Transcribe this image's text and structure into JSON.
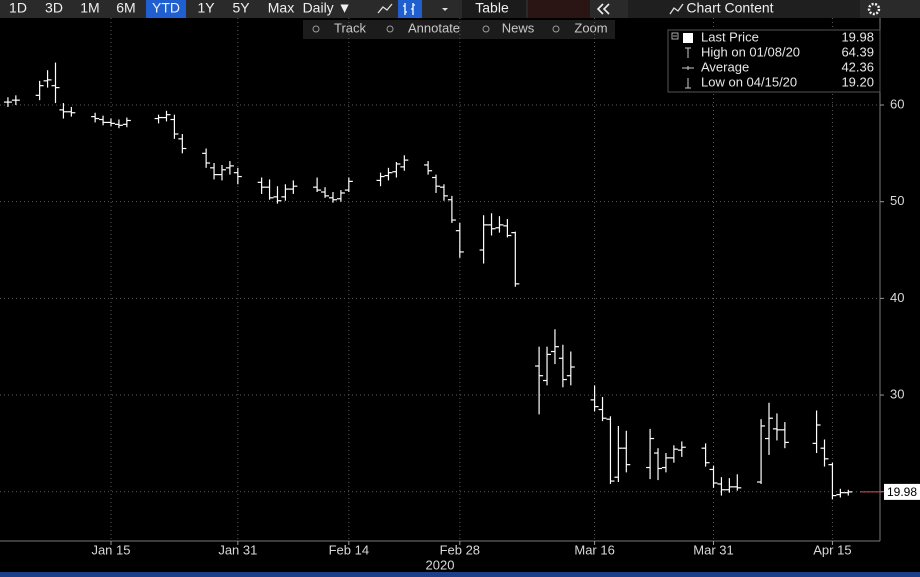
{
  "toolbar": {
    "periods": [
      "1D",
      "3D",
      "1M",
      "6M",
      "YTD",
      "1Y",
      "5Y",
      "Max"
    ],
    "selected": "YTD",
    "frequency": "Daily ▼",
    "table": "Table",
    "chart_content": "Chart Content",
    "tools": [
      "Track",
      "Annotate",
      "News",
      "Zoom"
    ]
  },
  "chart_data": {
    "type": "ohlc",
    "color": "#ffffff",
    "grid": true,
    "x": [
      "2020-01-02",
      "2020-01-03",
      "2020-01-06",
      "2020-01-07",
      "2020-01-08",
      "2020-01-09",
      "2020-01-10",
      "2020-01-13",
      "2020-01-14",
      "2020-01-15",
      "2020-01-16",
      "2020-01-17",
      "2020-01-21",
      "2020-01-22",
      "2020-01-23",
      "2020-01-24",
      "2020-01-27",
      "2020-01-28",
      "2020-01-29",
      "2020-01-30",
      "2020-01-31",
      "2020-02-03",
      "2020-02-04",
      "2020-02-05",
      "2020-02-06",
      "2020-02-07",
      "2020-02-10",
      "2020-02-11",
      "2020-02-12",
      "2020-02-13",
      "2020-02-14",
      "2020-02-18",
      "2020-02-19",
      "2020-02-20",
      "2020-02-21",
      "2020-02-24",
      "2020-02-25",
      "2020-02-26",
      "2020-02-27",
      "2020-02-28",
      "2020-03-02",
      "2020-03-03",
      "2020-03-04",
      "2020-03-05",
      "2020-03-06",
      "2020-03-09",
      "2020-03-10",
      "2020-03-11",
      "2020-03-12",
      "2020-03-13",
      "2020-03-16",
      "2020-03-17",
      "2020-03-18",
      "2020-03-19",
      "2020-03-20",
      "2020-03-23",
      "2020-03-24",
      "2020-03-25",
      "2020-03-26",
      "2020-03-27",
      "2020-03-30",
      "2020-03-31",
      "2020-04-01",
      "2020-04-02",
      "2020-04-03",
      "2020-04-06",
      "2020-04-07",
      "2020-04-08",
      "2020-04-09",
      "2020-04-13",
      "2020-04-14",
      "2020-04-15",
      "2020-04-16",
      "2020-04-17"
    ],
    "open": [
      60.3,
      60.5,
      61,
      62.5,
      62,
      59.5,
      59.3,
      58.8,
      58.5,
      58.2,
      58,
      58,
      58.6,
      58.7,
      58.5,
      56.5,
      55,
      53.5,
      52.8,
      53.5,
      53,
      52,
      51.5,
      50.5,
      50.5,
      51.3,
      51.5,
      51,
      50.4,
      50.3,
      51.2,
      52.2,
      52.7,
      53.1,
      53.6,
      53.8,
      52.5,
      51.5,
      50.2,
      47,
      45,
      47.6,
      47.3,
      47.5,
      46.8,
      33,
      31.5,
      34.5,
      33.8,
      32,
      29.5,
      28.5,
      27.5,
      21.5,
      24.5,
      22.5,
      24,
      22.5,
      23.5,
      24.3,
      24.5,
      22.3,
      20.8,
      20.2,
      20.5,
      21,
      25.5,
      26.5,
      26.4,
      25,
      24.5,
      22.8,
      19.7,
      19.9
    ],
    "high": [
      60.8,
      61,
      62.5,
      63.6,
      64.39,
      60.2,
      59.8,
      59.2,
      58.9,
      58.6,
      58.5,
      58.7,
      59,
      59.4,
      59,
      57,
      55.5,
      54,
      53.8,
      54.2,
      53.5,
      52.5,
      52.3,
      51.6,
      51.8,
      52.2,
      52.5,
      51.5,
      51,
      51.2,
      52.5,
      53,
      53.5,
      54.1,
      54.8,
      54.2,
      52.8,
      51.8,
      50.6,
      47.8,
      48.6,
      48.8,
      48.5,
      48.2,
      46.9,
      35,
      35,
      36.8,
      35.2,
      34.5,
      31,
      29.8,
      27.8,
      26.8,
      26.3,
      26.5,
      24.5,
      24,
      24.8,
      25.2,
      25,
      22.7,
      21.5,
      21.4,
      21.8,
      27.5,
      29.2,
      28.1,
      27.2,
      28.4,
      25.4,
      23,
      20.3,
      20.2
    ],
    "low": [
      59.8,
      60,
      60.5,
      61.8,
      60.2,
      58.6,
      58.8,
      58.2,
      57.9,
      57.8,
      57.6,
      57.7,
      58.1,
      58.3,
      56.5,
      55,
      53.5,
      52.3,
      52.2,
      52.8,
      51.8,
      50.8,
      50.2,
      49.8,
      50.1,
      50.8,
      51,
      50.4,
      49.9,
      50,
      51,
      51.6,
      52.2,
      52.5,
      53.2,
      52.8,
      50.9,
      50.1,
      47.8,
      44.2,
      43.6,
      46.5,
      46.8,
      46.3,
      41.2,
      28,
      31,
      33.2,
      30.8,
      31,
      28.3,
      27.3,
      20.8,
      21,
      22,
      21.3,
      21.2,
      22,
      23,
      23.6,
      22.6,
      20.4,
      19.6,
      19.9,
      20.1,
      20.8,
      23.8,
      25.3,
      24.5,
      24,
      22.6,
      19.2,
      19.4,
      19.6
    ],
    "close": [
      60.3,
      60.5,
      62,
      62.6,
      61.8,
      59.3,
      59.2,
      58.6,
      58.2,
      58.1,
      57.9,
      58.4,
      58.7,
      59,
      57,
      55.5,
      54,
      52.8,
      53.3,
      53.7,
      52.6,
      51.5,
      50.4,
      50.1,
      51.3,
      51.6,
      51.2,
      50.6,
      50.2,
      50.9,
      52.1,
      52.6,
      53,
      53.9,
      54.3,
      53.2,
      51.6,
      50.6,
      48.1,
      44.8,
      47.6,
      47.2,
      47.6,
      46.5,
      41.5,
      32,
      34.2,
      35,
      31.6,
      32.9,
      28.8,
      27.6,
      21.1,
      24.5,
      22.8,
      25.5,
      22.4,
      23.5,
      24.4,
      24.6,
      23,
      20.9,
      20.2,
      20.5,
      20.4,
      26.8,
      27.6,
      26.4,
      25.1,
      26.9,
      23.4,
      19.6,
      19.9,
      19.98
    ],
    "xlim": [
      "2020-01-01",
      "2020-04-21"
    ],
    "xticks": [
      {
        "value": "2020-01-15",
        "label": "Jan 15"
      },
      {
        "value": "2020-01-31",
        "label": "Jan 31"
      },
      {
        "value": "2020-02-14",
        "label": "Feb 14"
      },
      {
        "value": "2020-02-28",
        "label": "Feb 28"
      },
      {
        "value": "2020-03-16",
        "label": "Mar 16"
      },
      {
        "value": "2020-03-31",
        "label": "Mar 31"
      },
      {
        "value": "2020-04-15",
        "label": "Apr 15"
      }
    ],
    "x_year_label": "2020",
    "ylim": [
      14.9,
      69
    ],
    "yticks": [
      20,
      30,
      40,
      50,
      60
    ],
    "legend": [
      {
        "name": "Last Price",
        "value": 19.98
      },
      {
        "name": "High on 01/08/20",
        "value": 64.39
      },
      {
        "name": "Average",
        "value": 42.36
      },
      {
        "name": "Low on 04/15/20",
        "value": {
          "value": 19.2,
          "label": "19.20"
        }
      }
    ]
  }
}
